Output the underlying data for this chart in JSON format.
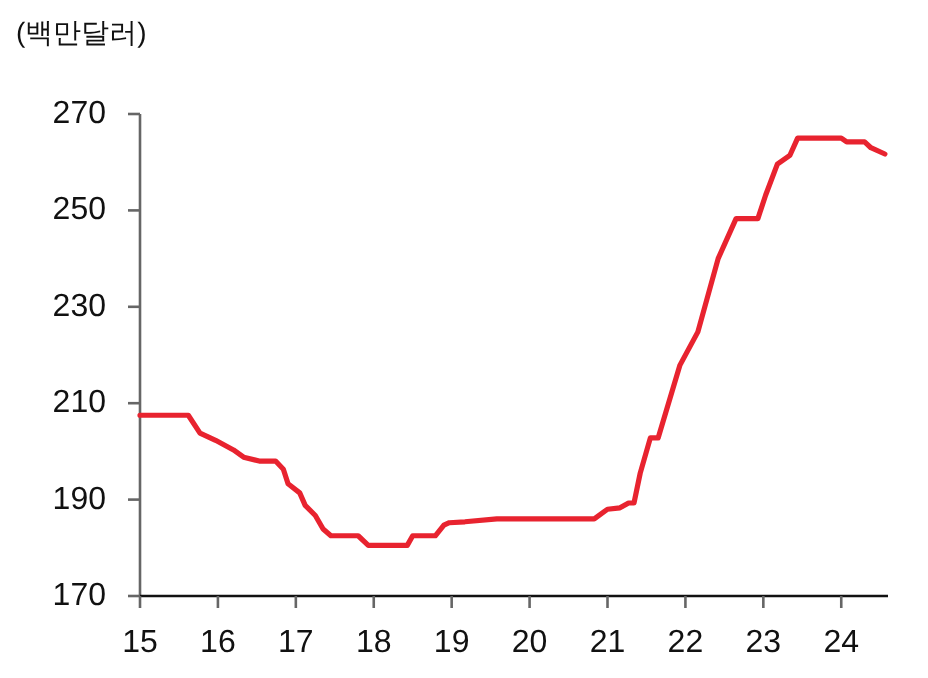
{
  "chart_data": {
    "type": "line",
    "ylabel": "(백만달러)",
    "x": [
      15,
      15.62,
      15.77,
      15.97,
      16.2,
      16.33,
      16.53,
      16.74,
      16.84,
      16.9,
      17.05,
      17.12,
      17.25,
      17.35,
      17.45,
      17.8,
      17.93,
      18.43,
      18.5,
      18.79,
      18.9,
      18.97,
      19.17,
      19.58,
      20.83,
      21.0,
      21.16,
      21.27,
      21.34,
      21.42,
      21.55,
      21.65,
      21.93,
      22.16,
      22.42,
      22.65,
      22.93,
      23.03,
      23.18,
      23.34,
      23.44,
      24.0,
      24.07,
      24.3,
      24.38,
      24.56
    ],
    "series": [
      {
        "color": "#e8232f",
        "values": [
          207.5,
          207.5,
          203.8,
          202.3,
          200.3,
          198.8,
          198,
          198,
          196.3,
          193.3,
          191.4,
          188.8,
          186.7,
          183.9,
          182.5,
          182.5,
          180.5,
          180.5,
          182.5,
          182.5,
          184.7,
          185.2,
          185.4,
          186,
          186,
          188,
          188.3,
          189.3,
          189.3,
          195.5,
          202.8,
          202.8,
          217.9,
          224.8,
          240,
          248.3,
          248.3,
          253.2,
          259.6,
          261.4,
          265,
          265,
          264.2,
          264.2,
          263,
          261.7
        ]
      }
    ],
    "xlim": [
      15,
      24.6
    ],
    "xticks": [
      15,
      16,
      17,
      18,
      19,
      20,
      21,
      22,
      23,
      24
    ],
    "ylim": [
      170,
      270
    ],
    "yticks": [
      170,
      190,
      210,
      230,
      250,
      270
    ],
    "grid": false,
    "line_style": "solid",
    "marker": "none"
  }
}
